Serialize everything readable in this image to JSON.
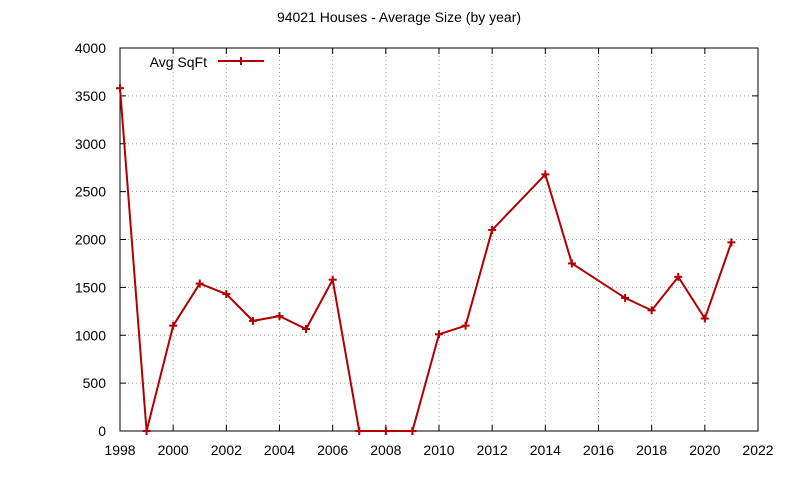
{
  "chart_data": {
    "type": "line",
    "title": "94021 Houses - Average Size (by year)",
    "xlabel": "",
    "ylabel": "",
    "xlim": [
      1998,
      2022
    ],
    "ylim": [
      0,
      4000
    ],
    "x_ticks": [
      1998,
      2000,
      2002,
      2004,
      2006,
      2008,
      2010,
      2012,
      2014,
      2016,
      2018,
      2020,
      2022
    ],
    "y_ticks": [
      0,
      500,
      1000,
      1500,
      2000,
      2500,
      3000,
      3500,
      4000
    ],
    "grid": true,
    "legend_position": "top-left",
    "series": [
      {
        "name": "Avg SqFt",
        "color": "#b00000",
        "marker": "plus",
        "x": [
          1998,
          1999,
          2000,
          2001,
          2002,
          2003,
          2004,
          2005,
          2006,
          2007,
          2008,
          2009,
          2010,
          2011,
          2012,
          2014,
          2015,
          2017,
          2018,
          2019,
          2020,
          2021
        ],
        "values": [
          3580,
          0,
          1100,
          1540,
          1430,
          1150,
          1200,
          1065,
          1580,
          0,
          0,
          0,
          1010,
          1100,
          2100,
          2680,
          1750,
          1390,
          1260,
          1610,
          1175,
          1970
        ]
      }
    ]
  }
}
